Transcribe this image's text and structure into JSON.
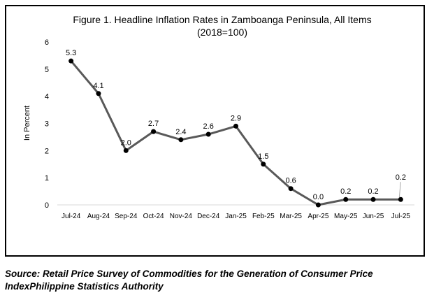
{
  "chart_data": {
    "type": "line",
    "title": "Figure 1. Headline Inflation Rates in Zamboanga Peninsula, All Items",
    "subtitle": "(2018=100)",
    "xlabel": "",
    "ylabel": "In Percent",
    "ylim": [
      0,
      6
    ],
    "yticks": [
      "0",
      "1",
      "2",
      "3",
      "4",
      "5",
      "6"
    ],
    "grid": false,
    "legend": "none",
    "categories": [
      "Jul-24",
      "Aug-24",
      "Sep-24",
      "Oct-24",
      "Nov-24",
      "Dec-24",
      "Jan-25",
      "Feb-25",
      "Mar-25",
      "Apr-25",
      "May-25",
      "Jun-25",
      "Jul-25"
    ],
    "series": [
      {
        "values": [
          5.3,
          4.1,
          2.0,
          2.7,
          2.4,
          2.6,
          2.9,
          1.5,
          0.6,
          0.0,
          0.2,
          0.2,
          0.2
        ],
        "labels": [
          "5.3",
          "4.1",
          "2.0",
          "2.7",
          "2.4",
          "2.6",
          "2.9",
          "1.5",
          "0.6",
          "0.0",
          "0.2",
          "0.2",
          "0.2"
        ],
        "color": "#595959",
        "marker_color": "#000000"
      }
    ]
  },
  "source": {
    "line1": "Source: Retail Price Survey of Commodities for the Generation of Consumer Price",
    "line2": "IndexPhilippine Statistics Authority"
  }
}
